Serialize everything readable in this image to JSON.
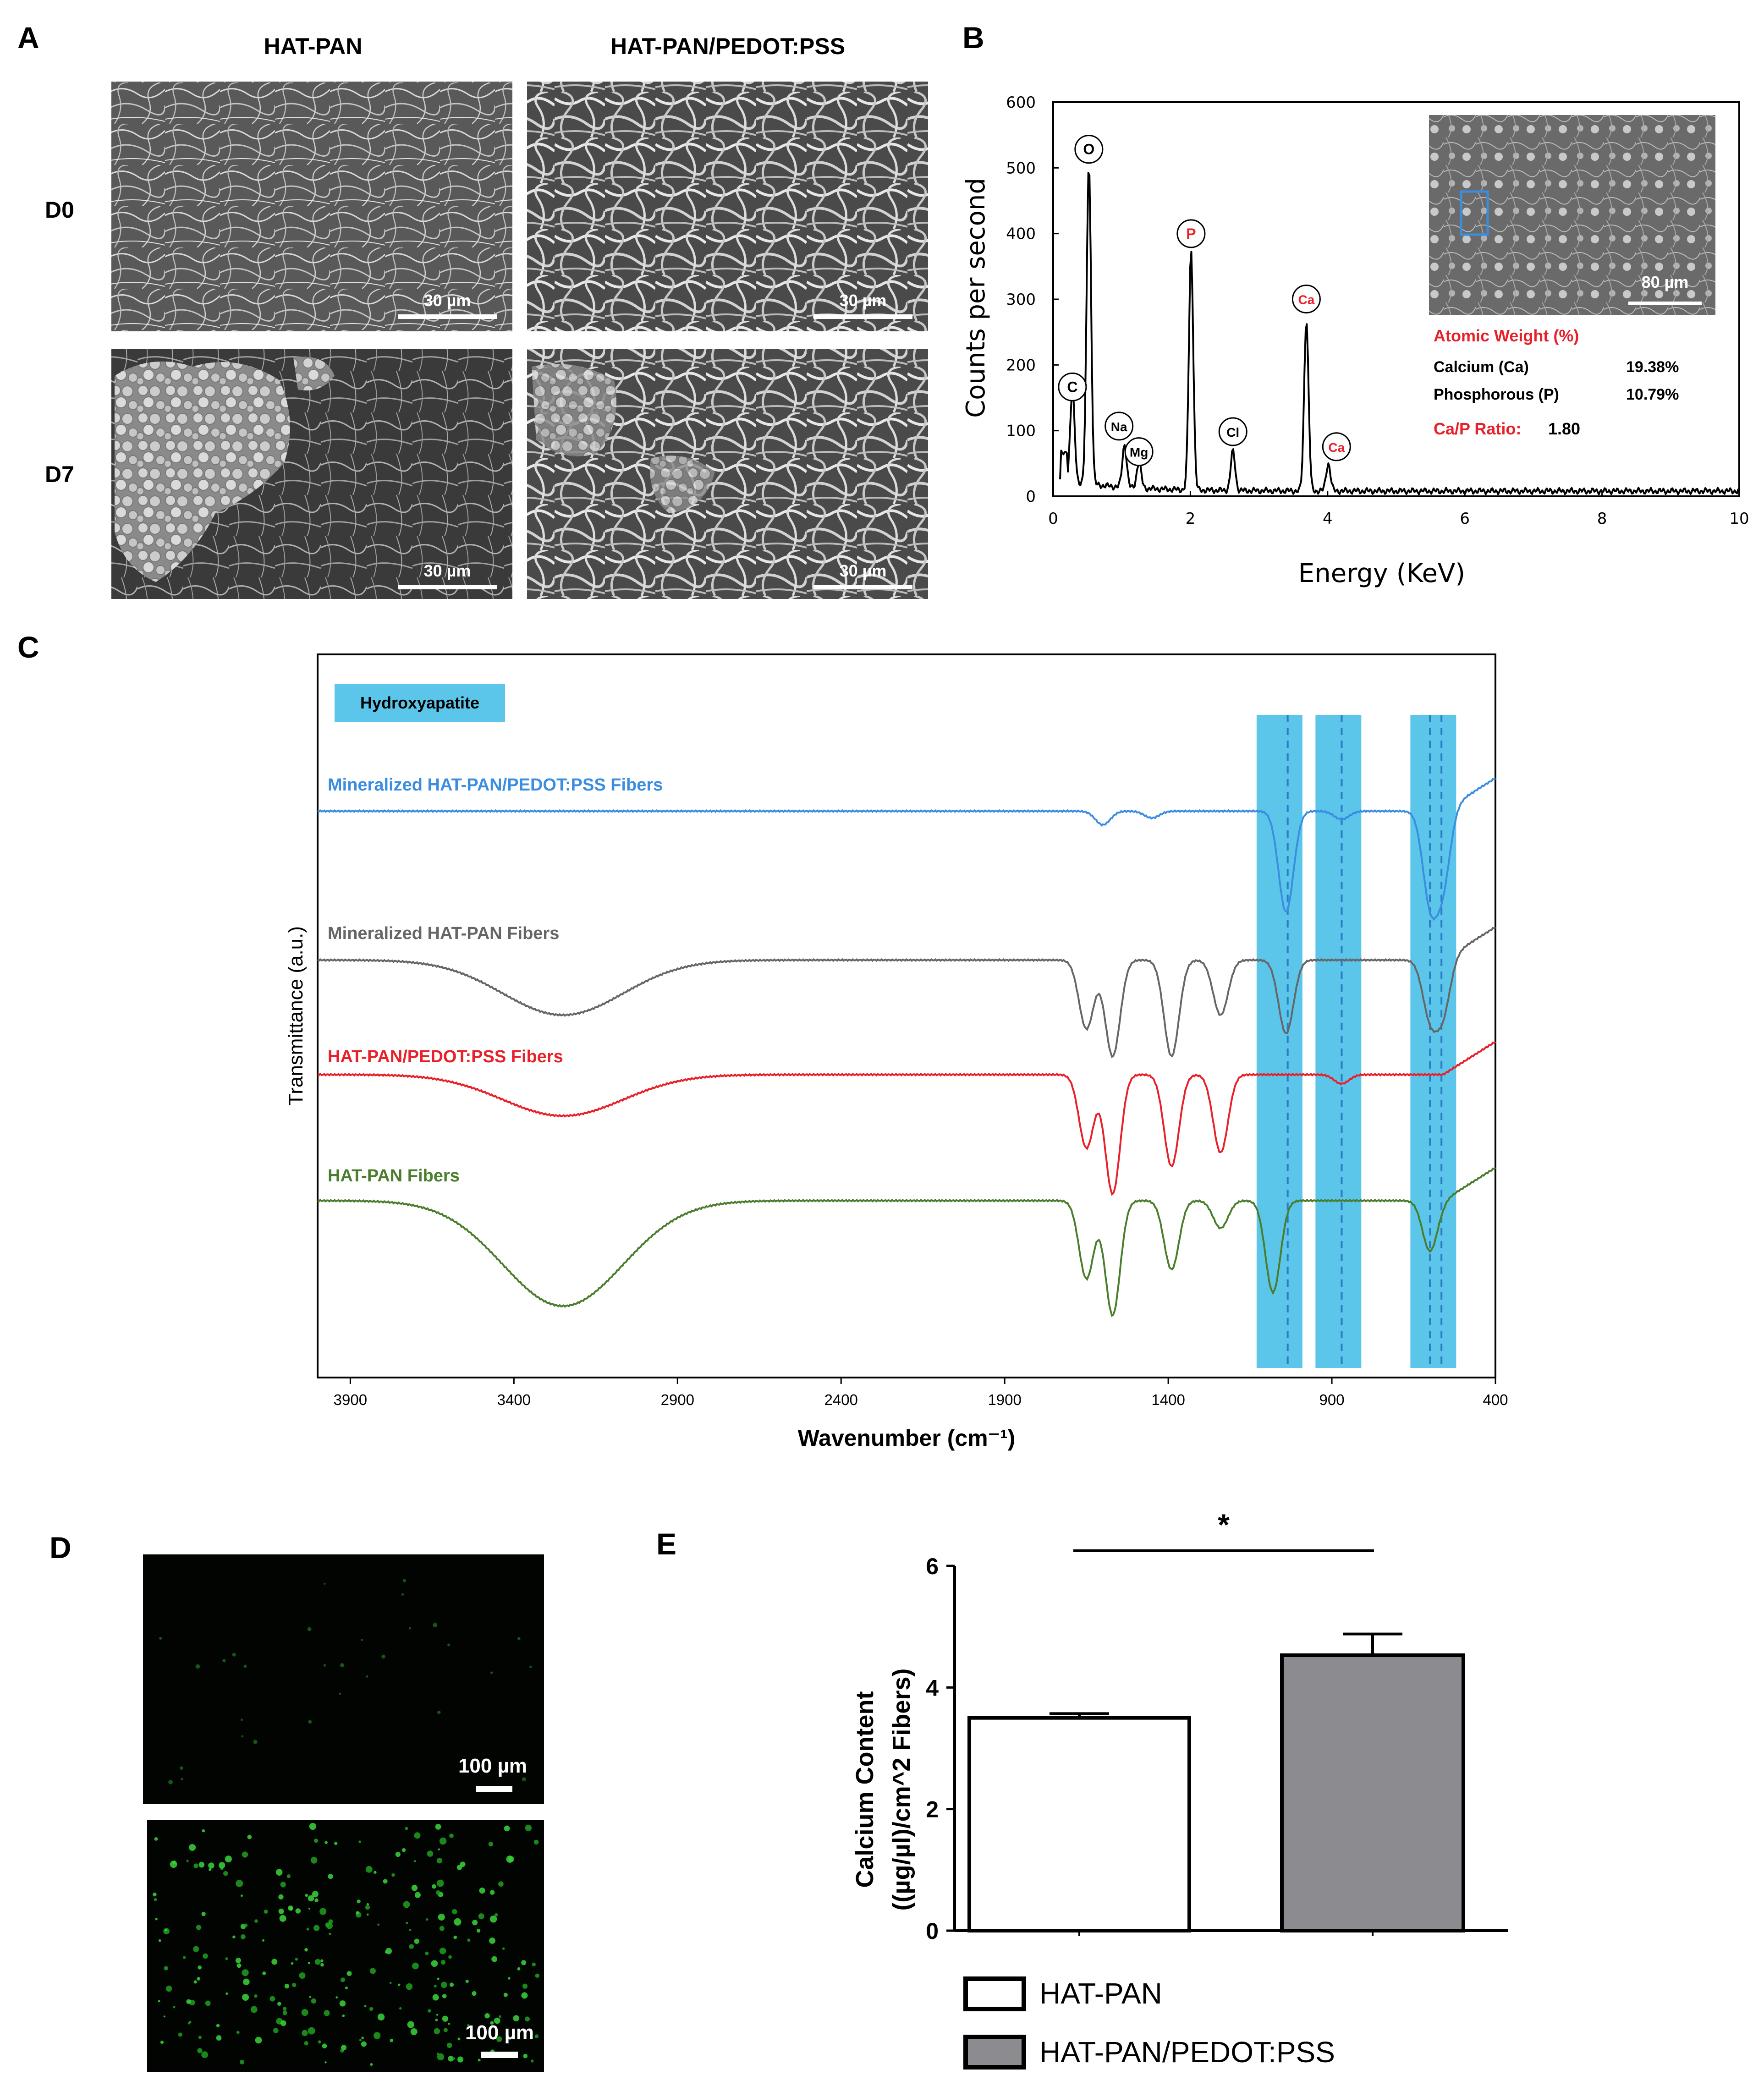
{
  "panels": {
    "A": {
      "letter": "A",
      "col_headers": [
        "HAT-PAN",
        "HAT-PAN/PEDOT:PSS"
      ],
      "row_labels": [
        "D0",
        "D7"
      ],
      "scale_bar": "30 µm"
    },
    "B": {
      "letter": "B",
      "inset_scale": "80 µm",
      "atomic_title": "Atomic Weight (%)",
      "rows": [
        {
          "label": "Calcium (Ca)",
          "value": "19.38%"
        },
        {
          "label": "Phosphorous (P)",
          "value": "10.79%"
        }
      ],
      "ratio_label": "Ca/P Ratio:",
      "ratio_value": "1.80"
    },
    "C": {
      "letter": "C"
    },
    "D": {
      "letter": "D",
      "scale_bar": "100 µm"
    },
    "E": {
      "letter": "E",
      "significance": "*"
    }
  },
  "colors": {
    "band": "#5bc5ea",
    "blue_trace": "#3b8de0",
    "gray_trace": "#666666",
    "red_trace": "#e8202a",
    "green_trace": "#4a7d2c",
    "bar_gray": "#8c8c90",
    "red_label": "#e8202a"
  },
  "chart_data": [
    {
      "id": "eds",
      "type": "line",
      "title": "",
      "xlabel": "Energy (KeV)",
      "ylabel": "Counts per second",
      "xlim": [
        0,
        10
      ],
      "ylim": [
        0,
        600
      ],
      "xticks": [
        0,
        2,
        4,
        6,
        8,
        10
      ],
      "yticks": [
        0,
        100,
        200,
        300,
        400,
        500,
        600
      ],
      "peaks": [
        {
          "label": "C",
          "x": 0.28,
          "y": 140,
          "red": false
        },
        {
          "label": "O",
          "x": 0.52,
          "y": 490,
          "red": false
        },
        {
          "label": "Na",
          "x": 1.04,
          "y": 65,
          "red": false
        },
        {
          "label": "Mg",
          "x": 1.25,
          "y": 40,
          "red": false
        },
        {
          "label": "P",
          "x": 2.01,
          "y": 365,
          "red": true
        },
        {
          "label": "Cl",
          "x": 2.62,
          "y": 60,
          "red": false
        },
        {
          "label": "Ca",
          "x": 3.69,
          "y": 262,
          "red": true
        },
        {
          "label": "Ca",
          "x": 4.01,
          "y": 42,
          "red": true
        }
      ],
      "grid": false
    },
    {
      "id": "ftir",
      "type": "line",
      "title": "",
      "xlabel": "Wavenumber (cm⁻¹)",
      "ylabel": "Transmittance (a.u.)",
      "xlim": [
        4000,
        400
      ],
      "xticks": [
        3900,
        3400,
        2900,
        2400,
        1900,
        1400,
        900,
        400
      ],
      "legend_box": "Hydroxyapatite",
      "bands": [
        [
          1130,
          990
        ],
        [
          950,
          810
        ],
        [
          660,
          520
        ]
      ],
      "band_dashed_lines": [
        1035,
        870,
        600,
        565
      ],
      "series": [
        {
          "name": "Mineralized HAT-PAN/PEDOT:PSS Fibers",
          "color": "blue_trace"
        },
        {
          "name": "Mineralized HAT-PAN Fibers",
          "color": "gray_trace"
        },
        {
          "name": "HAT-PAN/PEDOT:PSS Fibers",
          "color": "red_trace"
        },
        {
          "name": "HAT-PAN Fibers",
          "color": "green_trace"
        }
      ],
      "grid": false
    },
    {
      "id": "calcium",
      "type": "bar",
      "title": "",
      "ylabel": "Calcium Content ((µg/µl)/cm^2 Fibers)",
      "ylim": [
        0,
        6
      ],
      "yticks": [
        0,
        2,
        4,
        6
      ],
      "categories": [
        "HAT-PAN",
        "HAT-PAN/PEDOT:PSS"
      ],
      "values": [
        3.5,
        4.53
      ],
      "errors": [
        0.07,
        0.35
      ],
      "legend": [
        "HAT-PAN",
        "HAT-PAN/PEDOT:PSS"
      ],
      "grid": false
    }
  ]
}
